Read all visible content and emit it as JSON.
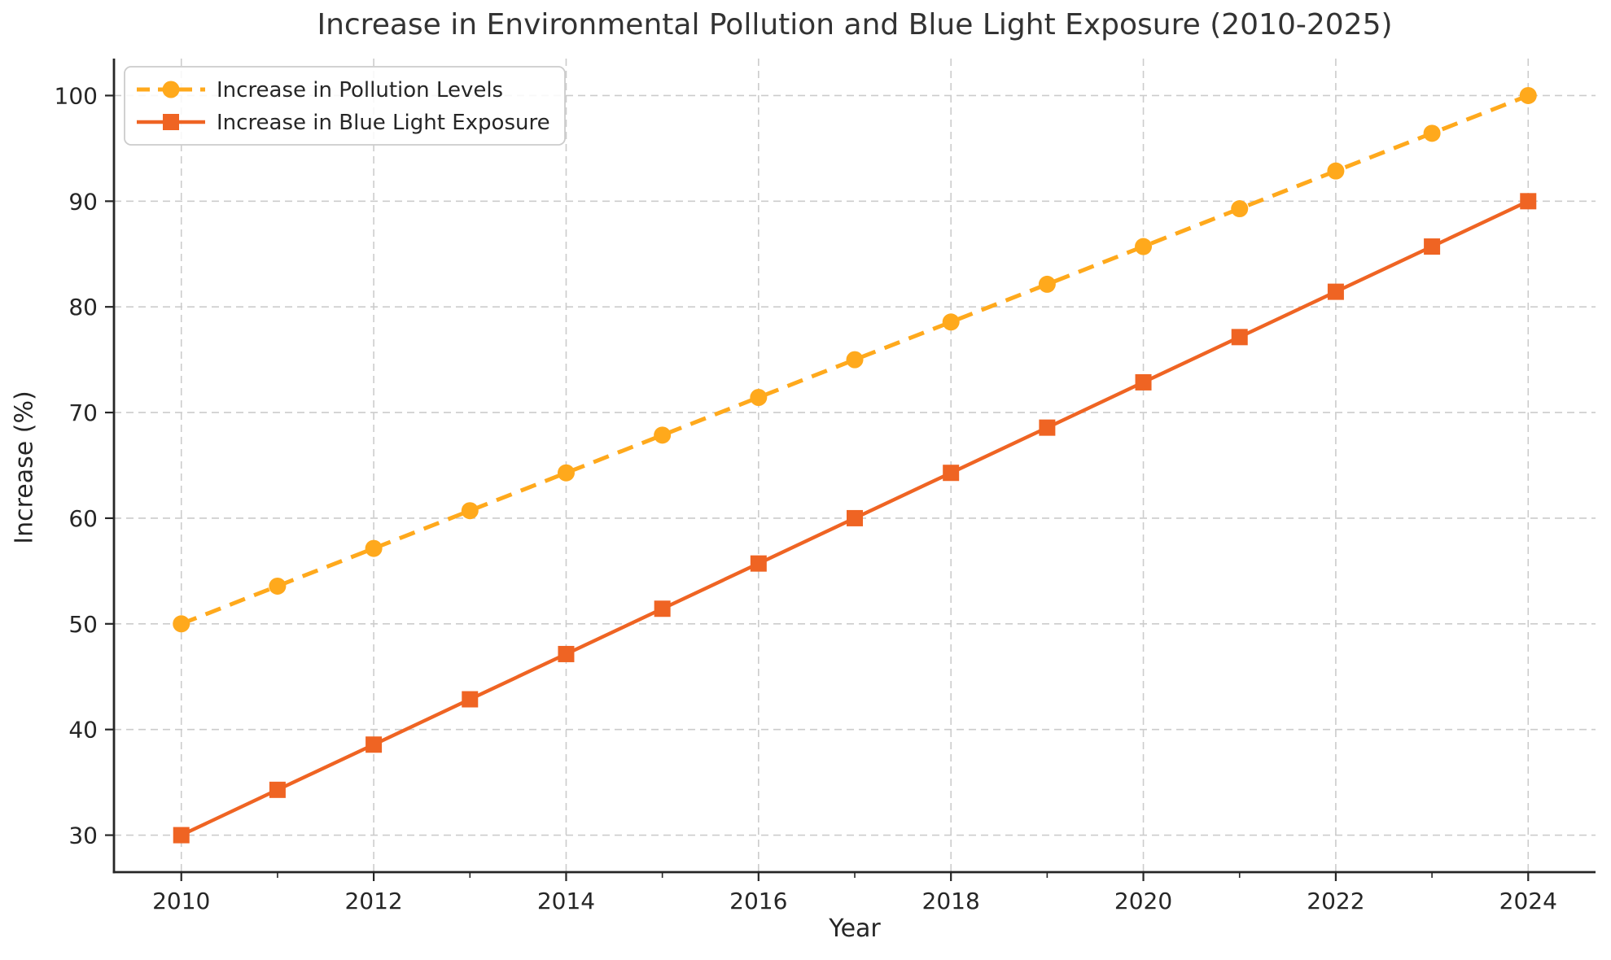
{
  "chart_data": {
    "type": "line",
    "title": "Increase in Environmental Pollution and Blue Light Exposure (2010-2025)",
    "xlabel": "Year",
    "ylabel": "Increase (%)",
    "x": [
      2010,
      2011,
      2012,
      2013,
      2014,
      2015,
      2016,
      2017,
      2018,
      2019,
      2020,
      2021,
      2022,
      2023,
      2024
    ],
    "series": [
      {
        "name": "Increase in Pollution Levels",
        "color": "#FFA91C",
        "line_style": "dashed",
        "marker": "circle",
        "values": [
          50.0,
          53.57,
          57.14,
          60.71,
          64.29,
          67.86,
          71.43,
          75.0,
          78.57,
          82.14,
          85.71,
          89.29,
          92.86,
          96.43,
          100.0
        ]
      },
      {
        "name": "Increase in Blue Light Exposure",
        "color": "#EF6423",
        "line_style": "solid",
        "marker": "square",
        "values": [
          30.0,
          34.29,
          38.57,
          42.86,
          47.14,
          51.43,
          55.71,
          60.0,
          64.29,
          68.57,
          72.86,
          77.14,
          81.43,
          85.71,
          90.0
        ]
      }
    ],
    "x_ticks": [
      2010,
      2012,
      2014,
      2016,
      2018,
      2020,
      2022,
      2024
    ],
    "x_minor_ticks": [
      2011,
      2013,
      2015,
      2017,
      2019,
      2021,
      2023
    ],
    "y_ticks": [
      30,
      40,
      50,
      60,
      70,
      80,
      90,
      100
    ],
    "xlim": [
      2009.3,
      2024.7
    ],
    "ylim": [
      26.5,
      103.5
    ],
    "grid": true,
    "grid_color": "#cccccc",
    "axis_color": "#262626",
    "text_color": "#262626",
    "title_color": "#333333",
    "legend_position": "upper left"
  }
}
